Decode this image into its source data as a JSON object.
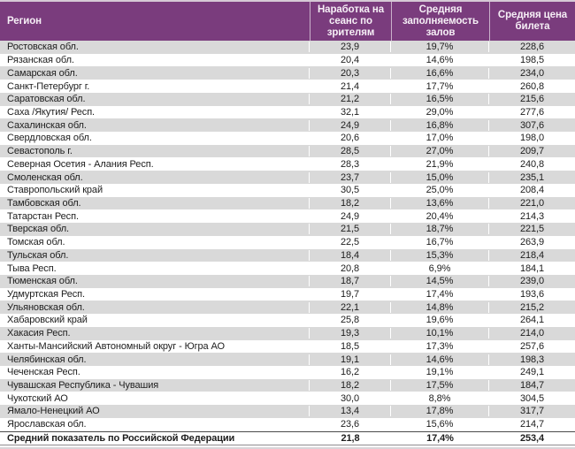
{
  "table": {
    "columns": [
      "Регион",
      "Наработка на\nсеанс по\nзрителям",
      "Средняя\nзаполняемость\nзалов",
      "Средняя цена\nбилета"
    ],
    "rows": [
      {
        "region": "Ростовская обл.",
        "per_session": "23,9",
        "occupancy": "19,7%",
        "price": "228,6"
      },
      {
        "region": "Рязанская обл.",
        "per_session": "20,4",
        "occupancy": "14,6%",
        "price": "198,5"
      },
      {
        "region": "Самарская обл.",
        "per_session": "20,3",
        "occupancy": "16,6%",
        "price": "234,0"
      },
      {
        "region": "Санкт-Петербург г.",
        "per_session": "21,4",
        "occupancy": "17,7%",
        "price": "260,8"
      },
      {
        "region": "Саратовская обл.",
        "per_session": "21,2",
        "occupancy": "16,5%",
        "price": "215,6"
      },
      {
        "region": "Саха /Якутия/ Респ.",
        "per_session": "32,1",
        "occupancy": "29,0%",
        "price": "277,6"
      },
      {
        "region": "Сахалинская обл.",
        "per_session": "24,9",
        "occupancy": "16,8%",
        "price": "307,6"
      },
      {
        "region": "Свердловская обл.",
        "per_session": "20,6",
        "occupancy": "17,0%",
        "price": "198,0"
      },
      {
        "region": "Севастополь г.",
        "per_session": "28,5",
        "occupancy": "27,0%",
        "price": "209,7"
      },
      {
        "region": "Северная Осетия - Алания Респ.",
        "per_session": "28,3",
        "occupancy": "21,9%",
        "price": "240,8"
      },
      {
        "region": "Смоленская обл.",
        "per_session": "23,7",
        "occupancy": "15,0%",
        "price": "235,1"
      },
      {
        "region": "Ставропольский край",
        "per_session": "30,5",
        "occupancy": "25,0%",
        "price": "208,4"
      },
      {
        "region": "Тамбовская обл.",
        "per_session": "18,2",
        "occupancy": "13,6%",
        "price": "221,0"
      },
      {
        "region": "Татарстан Респ.",
        "per_session": "24,9",
        "occupancy": "20,4%",
        "price": "214,3"
      },
      {
        "region": "Тверская обл.",
        "per_session": "21,5",
        "occupancy": "18,7%",
        "price": "221,5"
      },
      {
        "region": "Томская обл.",
        "per_session": "22,5",
        "occupancy": "16,7%",
        "price": "263,9"
      },
      {
        "region": "Тульская обл.",
        "per_session": "18,4",
        "occupancy": "15,3%",
        "price": "218,4"
      },
      {
        "region": "Тыва Респ.",
        "per_session": "20,8",
        "occupancy": "6,9%",
        "price": "184,1"
      },
      {
        "region": "Тюменская обл.",
        "per_session": "18,7",
        "occupancy": "14,5%",
        "price": "239,0"
      },
      {
        "region": "Удмуртская Респ.",
        "per_session": "19,7",
        "occupancy": "17,4%",
        "price": "193,6"
      },
      {
        "region": "Ульяновская обл.",
        "per_session": "22,1",
        "occupancy": "14,8%",
        "price": "215,2"
      },
      {
        "region": "Хабаровский край",
        "per_session": "25,8",
        "occupancy": "19,6%",
        "price": "264,1"
      },
      {
        "region": "Хакасия Респ.",
        "per_session": "19,3",
        "occupancy": "10,1%",
        "price": "214,0"
      },
      {
        "region": "Ханты-Мансийский Автономный округ - Югра АО",
        "per_session": "18,5",
        "occupancy": "17,3%",
        "price": "257,6"
      },
      {
        "region": "Челябинская обл.",
        "per_session": "19,1",
        "occupancy": "14,6%",
        "price": "198,3"
      },
      {
        "region": "Чеченская Респ.",
        "per_session": "16,2",
        "occupancy": "19,1%",
        "price": "249,1"
      },
      {
        "region": "Чувашская Республика - Чувашия",
        "per_session": "18,2",
        "occupancy": "17,5%",
        "price": "184,7"
      },
      {
        "region": "Чукотский АО",
        "per_session": "30,0",
        "occupancy": "8,8%",
        "price": "304,5"
      },
      {
        "region": "Ямало-Ненецкий АО",
        "per_session": "13,4",
        "occupancy": "17,8%",
        "price": "317,7"
      },
      {
        "region": "Ярославская обл.",
        "per_session": "23,6",
        "occupancy": "15,6%",
        "price": "214,7"
      }
    ],
    "summary": {
      "region": "Средний показатель по Российской Федерации",
      "per_session": "21,8",
      "occupancy": "17,4%",
      "price": "253,4"
    }
  },
  "colors": {
    "header_bg": "#7A3C7D",
    "header_text": "#F6EFF6",
    "row_alt_bg": "#D9D9D9",
    "row_bg": "#FFFFFF",
    "text": "#1D1D1D"
  }
}
